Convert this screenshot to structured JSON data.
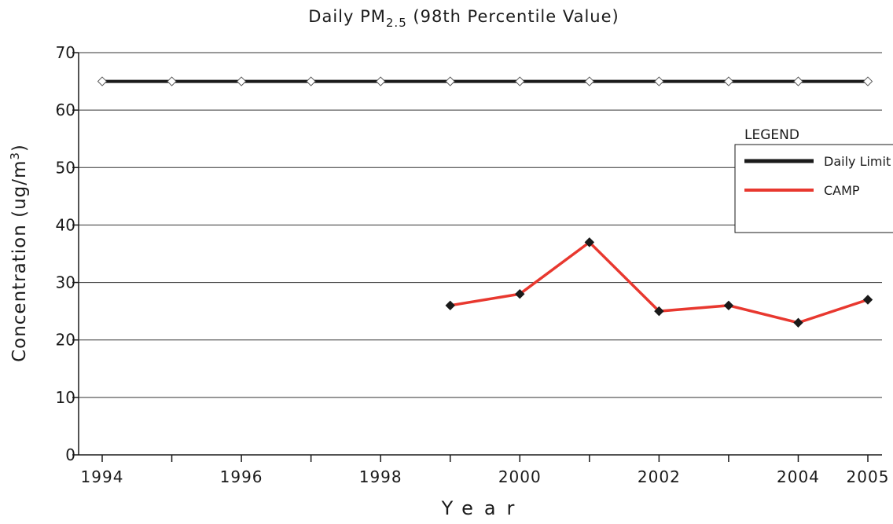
{
  "chart_data": {
    "type": "line",
    "title": "Daily PM",
    "title_subscript": "2.5",
    "title_rest": " (98th Percentile Value)",
    "y_label": "Concentration (ug/m",
    "y_label_superscript": "3",
    "y_label_end": ")",
    "x_label": "Year",
    "x": [
      1994,
      1995,
      1996,
      1997,
      1998,
      1999,
      2000,
      2001,
      2002,
      2003,
      2004,
      2005
    ],
    "xlim": [
      1994,
      2005
    ],
    "xticks": [
      1994,
      1996,
      1998,
      2000,
      2002,
      2004,
      2005
    ],
    "x_minor_ticks": [
      1995,
      1997,
      1999,
      2001,
      2003
    ],
    "ylim": [
      0,
      70
    ],
    "yticks": [
      0,
      10,
      20,
      30,
      40,
      50,
      60,
      70
    ],
    "grid": true,
    "legend_title": "LEGEND",
    "legend": "right",
    "series": [
      {
        "name": "Daily Limit",
        "color": "#1a1a1a",
        "marker_color": "#ffffff",
        "values": [
          65,
          65,
          65,
          65,
          65,
          65,
          65,
          65,
          65,
          65,
          65,
          65
        ]
      },
      {
        "name": "CAMP",
        "color": "#e8382f",
        "marker_color": "#1a1a1a",
        "values": [
          null,
          null,
          null,
          null,
          null,
          26,
          28,
          37,
          25,
          26,
          23,
          27
        ]
      }
    ]
  }
}
